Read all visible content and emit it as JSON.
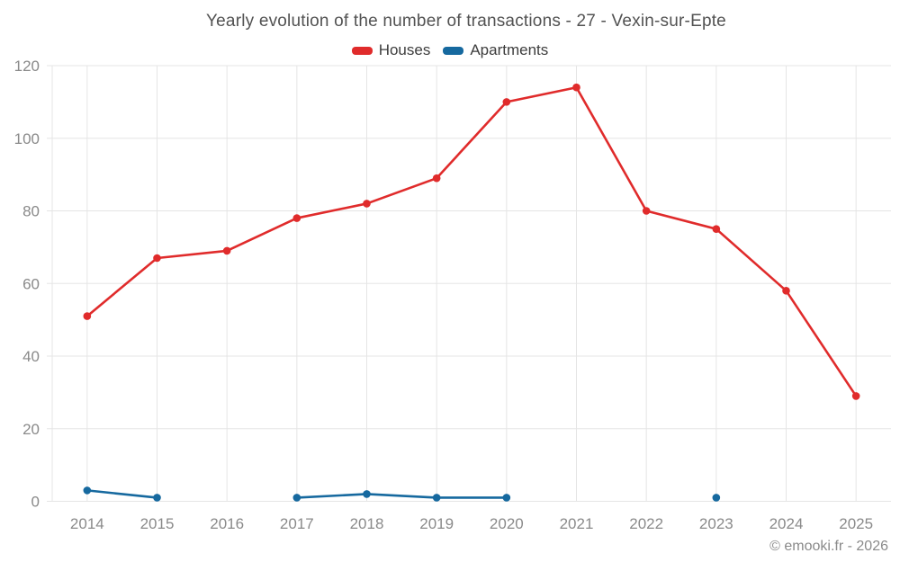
{
  "chart_data": {
    "type": "line",
    "title": "Yearly evolution of the number of transactions - 27 - Vexin-sur-Epte",
    "categories": [
      "2014",
      "2015",
      "2016",
      "2017",
      "2018",
      "2019",
      "2020",
      "2021",
      "2022",
      "2023",
      "2024",
      "2025"
    ],
    "series": [
      {
        "name": "Houses",
        "color": "#e02b2b",
        "values": [
          51,
          67,
          69,
          78,
          82,
          89,
          110,
          114,
          80,
          75,
          58,
          29
        ]
      },
      {
        "name": "Apartments",
        "color": "#16699f",
        "values": [
          3,
          1,
          null,
          1,
          2,
          1,
          1,
          null,
          null,
          1,
          null,
          null
        ]
      }
    ],
    "ylim": [
      0,
      120
    ],
    "yticks": [
      0,
      20,
      40,
      60,
      80,
      100,
      120
    ],
    "grid": true,
    "legend_position": "top"
  },
  "footer": {
    "text": "© emooki.fr - 2026"
  },
  "colors": {
    "grid": "#e5e5e5",
    "tick_label": "#8a8a8a",
    "title_text": "#525252",
    "legend_text": "#3d3d3d",
    "background": "#ffffff"
  }
}
